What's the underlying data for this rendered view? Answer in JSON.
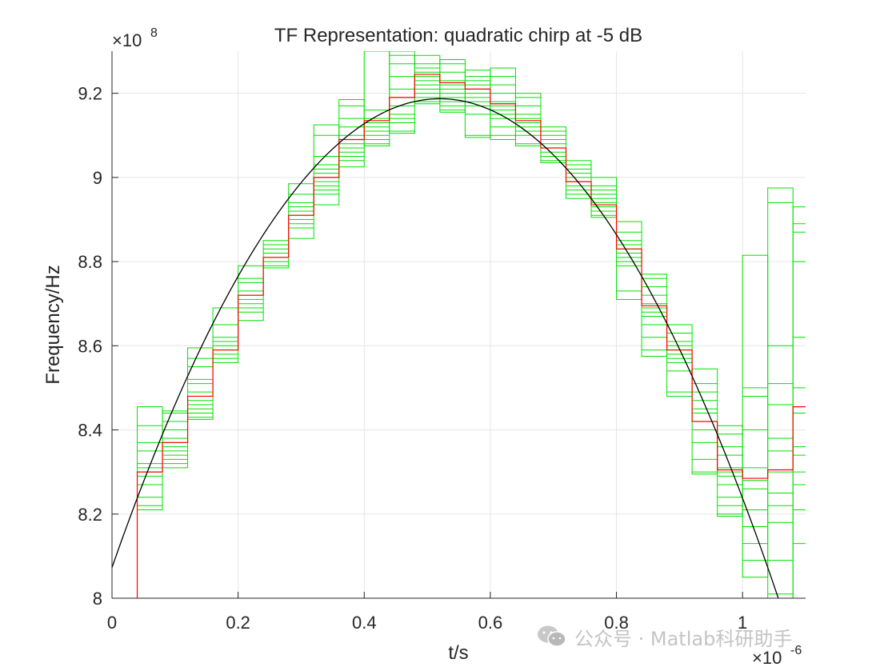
{
  "chart_data": {
    "type": "line",
    "title": "TF Representation: quadratic chirp at -5 dB",
    "xlabel": "t/s",
    "ylabel": "Frequency/Hz",
    "x_exponent_label": "×10",
    "x_exponent_power": "-6",
    "y_exponent_label": "×10",
    "y_exponent_power": "8",
    "xlim": [
      0,
      1.1
    ],
    "ylim": [
      8.0,
      9.3
    ],
    "grid": true,
    "legend": "none",
    "xticks": [
      0,
      0.2,
      0.4,
      0.6,
      0.8,
      1.0
    ],
    "xtick_labels": [
      "0",
      "0.2",
      "0.4",
      "0.6",
      "0.8",
      "1"
    ],
    "yticks": [
      8.0,
      8.2,
      8.4,
      8.6,
      8.8,
      9.0,
      9.2
    ],
    "ytick_labels": [
      "8",
      "8.2",
      "8.4",
      "8.6",
      "8.8",
      "9",
      "9.2"
    ],
    "segment_width": 0.04,
    "segment_starts": [
      0.04,
      0.08,
      0.12,
      0.16,
      0.2,
      0.24,
      0.28,
      0.32,
      0.36,
      0.4,
      0.44,
      0.48,
      0.52,
      0.56,
      0.6,
      0.64,
      0.68,
      0.72,
      0.76,
      0.8,
      0.84,
      0.88,
      0.92,
      0.96,
      1.0,
      1.04,
      1.08
    ],
    "series": [
      {
        "kind": "true-curve",
        "color": "#000000",
        "model": "quadratic",
        "vertex_t": 0.52,
        "vertex_f": 9.187,
        "curvature": -4.12
      },
      {
        "kind": "mean-estimate",
        "color": "#ff0000",
        "start_value": 8.0,
        "values": [
          8.3,
          8.37,
          8.48,
          8.59,
          8.72,
          8.81,
          8.91,
          9.0,
          9.09,
          9.135,
          9.19,
          9.245,
          9.225,
          9.21,
          9.175,
          9.135,
          9.07,
          8.99,
          8.935,
          8.83,
          8.695,
          8.59,
          8.42,
          8.305,
          8.285,
          8.305,
          8.455
        ]
      },
      {
        "kind": "trial-estimates",
        "color": "#00e000",
        "boxes": [
          [
            8.21,
            8.455
          ],
          [
            8.31,
            8.445
          ],
          [
            8.425,
            8.595
          ],
          [
            8.56,
            8.69
          ],
          [
            8.66,
            8.79
          ],
          [
            8.785,
            8.85
          ],
          [
            8.855,
            8.985
          ],
          [
            8.935,
            9.125
          ],
          [
            9.025,
            9.185
          ],
          [
            9.075,
            9.3
          ],
          [
            9.105,
            9.3
          ],
          [
            9.175,
            9.29
          ],
          [
            9.155,
            9.28
          ],
          [
            9.095,
            9.255
          ],
          [
            9.09,
            9.26
          ],
          [
            9.075,
            9.2
          ],
          [
            9.035,
            9.12
          ],
          [
            8.95,
            9.04
          ],
          [
            8.905,
            9.0
          ],
          [
            8.71,
            8.895
          ],
          [
            8.575,
            8.77
          ],
          [
            8.48,
            8.65
          ],
          [
            8.295,
            8.545
          ],
          [
            8.195,
            8.41
          ],
          [
            8.05,
            8.815
          ],
          [
            8.0,
            8.975
          ],
          [
            8.0,
            8.93
          ]
        ],
        "lines": [
          [
            8.22,
            8.24,
            8.27,
            8.29,
            8.3,
            8.31,
            8.32,
            8.35,
            8.37,
            8.41
          ],
          [
            8.32,
            8.33,
            8.34,
            8.35,
            8.36,
            8.37,
            8.38,
            8.4,
            8.42,
            8.44
          ],
          [
            8.43,
            8.44,
            8.45,
            8.46,
            8.47,
            8.48,
            8.49,
            8.51,
            8.52,
            8.55,
            8.57
          ],
          [
            8.57,
            8.58,
            8.59,
            8.6,
            8.61,
            8.62,
            8.65
          ],
          [
            8.68,
            8.69,
            8.7,
            8.71,
            8.72,
            8.73,
            8.75,
            8.76
          ],
          [
            8.79,
            8.8,
            8.81,
            8.82,
            8.83,
            8.84
          ],
          [
            8.88,
            8.89,
            8.9,
            8.91,
            8.92,
            8.93,
            8.94,
            8.96
          ],
          [
            8.96,
            8.97,
            8.98,
            8.99,
            9.0,
            9.01,
            9.02,
            9.03,
            9.05,
            9.1
          ],
          [
            9.04,
            9.05,
            9.06,
            9.07,
            9.08,
            9.09,
            9.1,
            9.12,
            9.14,
            9.17
          ],
          [
            9.08,
            9.09,
            9.1,
            9.11,
            9.12,
            9.13,
            9.14,
            9.16
          ],
          [
            9.11,
            9.13,
            9.14,
            9.15,
            9.17,
            9.19,
            9.21,
            9.24,
            9.27,
            9.29
          ],
          [
            9.18,
            9.19,
            9.2,
            9.21,
            9.22,
            9.23,
            9.24,
            9.25,
            9.26,
            9.27
          ],
          [
            9.16,
            9.17,
            9.18,
            9.19,
            9.2,
            9.21,
            9.22,
            9.23,
            9.25,
            9.27
          ],
          [
            9.1,
            9.15,
            9.17,
            9.18,
            9.19,
            9.2,
            9.21,
            9.22,
            9.23,
            9.24
          ],
          [
            9.1,
            9.12,
            9.14,
            9.15,
            9.16,
            9.17,
            9.18,
            9.2,
            9.22,
            9.24
          ],
          [
            9.08,
            9.1,
            9.11,
            9.12,
            9.13,
            9.14,
            9.15,
            9.17,
            9.19
          ],
          [
            9.04,
            9.05,
            9.06,
            9.07,
            9.08,
            9.09,
            9.1,
            9.11
          ],
          [
            8.96,
            8.97,
            8.98,
            8.99,
            9.0,
            9.01,
            9.02,
            9.03
          ],
          [
            8.91,
            8.92,
            8.93,
            8.94,
            8.95,
            8.96,
            8.97,
            8.98
          ],
          [
            8.73,
            8.79,
            8.8,
            8.81,
            8.82,
            8.83,
            8.84,
            8.85,
            8.87
          ],
          [
            8.59,
            8.62,
            8.65,
            8.67,
            8.68,
            8.69,
            8.7,
            8.72,
            8.74,
            8.76
          ],
          [
            8.49,
            8.54,
            8.56,
            8.57,
            8.58,
            8.59,
            8.6,
            8.61,
            8.63
          ],
          [
            8.3,
            8.33,
            8.37,
            8.4,
            8.42,
            8.44,
            8.45,
            8.47,
            8.49,
            8.51
          ],
          [
            8.2,
            8.22,
            8.24,
            8.27,
            8.29,
            8.3,
            8.31,
            8.34,
            8.36,
            8.39
          ],
          [
            8.09,
            8.13,
            8.17,
            8.21,
            8.26,
            8.28,
            8.31,
            8.4,
            8.48,
            8.5
          ],
          [
            8.01,
            8.09,
            8.18,
            8.22,
            8.25,
            8.3,
            8.35,
            8.38,
            8.46,
            8.51,
            8.6,
            8.94
          ],
          [
            8.13,
            8.21,
            8.27,
            8.3,
            8.34,
            8.36,
            8.44,
            8.5,
            8.62,
            8.8,
            8.87,
            8.89
          ]
        ]
      }
    ]
  },
  "watermark": {
    "icon": "wechat-icon",
    "text": "公众号 · Matlab科研助手"
  }
}
